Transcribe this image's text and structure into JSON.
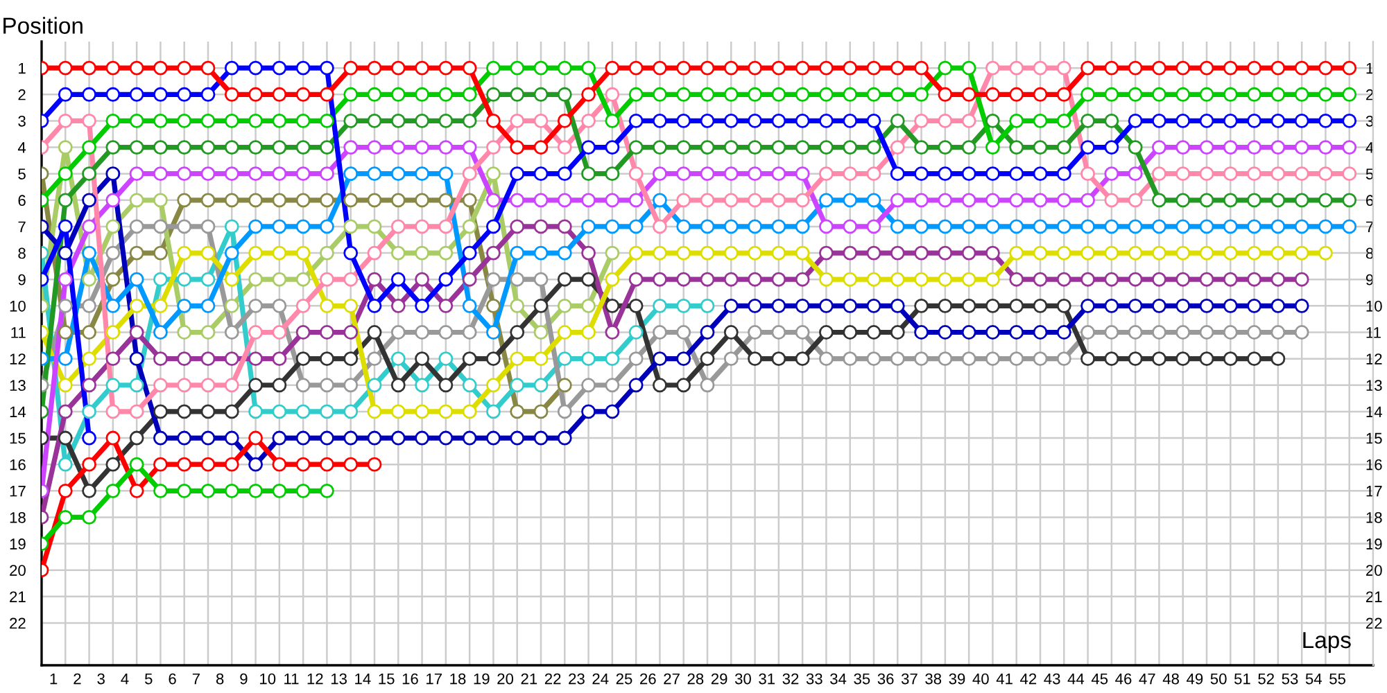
{
  "chart_data": {
    "type": "line",
    "xlabel": "Laps",
    "ylabel": "Position",
    "marker": "circle",
    "grid": true,
    "x": [
      0,
      1,
      2,
      3,
      4,
      5,
      6,
      7,
      8,
      9,
      10,
      11,
      12,
      13,
      14,
      15,
      16,
      17,
      18,
      19,
      20,
      21,
      22,
      23,
      24,
      25,
      26,
      27,
      28,
      29,
      30,
      31,
      32,
      33,
      34,
      35,
      36,
      37,
      38,
      39,
      40,
      41,
      42,
      43,
      44,
      45,
      46,
      47,
      48,
      49,
      50,
      51,
      52,
      53,
      54,
      55
    ],
    "xlim": [
      0,
      56
    ],
    "xticks": [
      {
        "value": 0.5,
        "label": "1"
      },
      {
        "value": 1.5,
        "label": "2"
      },
      {
        "value": 2.5,
        "label": "3"
      },
      {
        "value": 3.5,
        "label": "4"
      },
      {
        "value": 4.5,
        "label": "5"
      },
      {
        "value": 5.5,
        "label": "6"
      },
      {
        "value": 6.5,
        "label": "7"
      },
      {
        "value": 7.5,
        "label": "8"
      },
      {
        "value": 8.5,
        "label": "9"
      },
      {
        "value": 9.5,
        "label": "10"
      },
      {
        "value": 10.5,
        "label": "11"
      },
      {
        "value": 11.5,
        "label": "12"
      },
      {
        "value": 12.5,
        "label": "13"
      },
      {
        "value": 13.5,
        "label": "14"
      },
      {
        "value": 14.5,
        "label": "15"
      },
      {
        "value": 15.5,
        "label": "16"
      },
      {
        "value": 16.5,
        "label": "17"
      },
      {
        "value": 17.5,
        "label": "18"
      },
      {
        "value": 18.5,
        "label": "19"
      },
      {
        "value": 19.5,
        "label": "20"
      },
      {
        "value": 20.5,
        "label": "21"
      },
      {
        "value": 21.5,
        "label": "22"
      },
      {
        "value": 22.5,
        "label": "23"
      },
      {
        "value": 23.5,
        "label": "24"
      },
      {
        "value": 24.5,
        "label": "25"
      },
      {
        "value": 25.5,
        "label": "26"
      },
      {
        "value": 26.5,
        "label": "27"
      },
      {
        "value": 27.5,
        "label": "28"
      },
      {
        "value": 28.5,
        "label": "29"
      },
      {
        "value": 29.5,
        "label": "30"
      },
      {
        "value": 30.5,
        "label": "31"
      },
      {
        "value": 31.5,
        "label": "32"
      },
      {
        "value": 32.5,
        "label": "33"
      },
      {
        "value": 33.5,
        "label": "34"
      },
      {
        "value": 34.5,
        "label": "35"
      },
      {
        "value": 35.5,
        "label": "36"
      },
      {
        "value": 36.5,
        "label": "37"
      },
      {
        "value": 37.5,
        "label": "38"
      },
      {
        "value": 38.5,
        "label": "39"
      },
      {
        "value": 39.5,
        "label": "40"
      },
      {
        "value": 40.5,
        "label": "41"
      },
      {
        "value": 41.5,
        "label": "42"
      },
      {
        "value": 42.5,
        "label": "43"
      },
      {
        "value": 43.5,
        "label": "44"
      },
      {
        "value": 44.5,
        "label": "45"
      },
      {
        "value": 45.5,
        "label": "46"
      },
      {
        "value": 46.5,
        "label": "47"
      },
      {
        "value": 47.5,
        "label": "48"
      },
      {
        "value": 48.5,
        "label": "49"
      },
      {
        "value": 49.5,
        "label": "50"
      },
      {
        "value": 50.5,
        "label": "51"
      },
      {
        "value": 51.5,
        "label": "52"
      },
      {
        "value": 52.5,
        "label": "53"
      },
      {
        "value": 53.5,
        "label": "54"
      },
      {
        "value": 54.5,
        "label": "55"
      },
      {
        "value": 1,
        "label": null
      },
      {
        "value": 2,
        "label": null
      },
      {
        "value": 3,
        "label": null
      },
      {
        "value": 4,
        "label": null
      },
      {
        "value": 5,
        "label": null
      },
      {
        "value": 6,
        "label": null
      },
      {
        "value": 7,
        "label": null
      },
      {
        "value": 8,
        "label": null
      },
      {
        "value": 9,
        "label": null
      },
      {
        "value": 10,
        "label": null
      },
      {
        "value": 11,
        "label": null
      },
      {
        "value": 12,
        "label": null
      },
      {
        "value": 13,
        "label": null
      },
      {
        "value": 14,
        "label": null
      },
      {
        "value": 15,
        "label": null
      },
      {
        "value": 16,
        "label": null
      },
      {
        "value": 17,
        "label": null
      },
      {
        "value": 18,
        "label": null
      },
      {
        "value": 19,
        "label": null
      },
      {
        "value": 20,
        "label": null
      },
      {
        "value": 21,
        "label": null
      },
      {
        "value": 22,
        "label": null
      },
      {
        "value": 23,
        "label": null
      },
      {
        "value": 24,
        "label": null
      },
      {
        "value": 25,
        "label": null
      },
      {
        "value": 26,
        "label": null
      },
      {
        "value": 27,
        "label": null
      },
      {
        "value": 28,
        "label": null
      },
      {
        "value": 29,
        "label": null
      },
      {
        "value": 30,
        "label": null
      },
      {
        "value": 31,
        "label": null
      },
      {
        "value": 32,
        "label": null
      },
      {
        "value": 33,
        "label": null
      },
      {
        "value": 34,
        "label": null
      },
      {
        "value": 35,
        "label": null
      },
      {
        "value": 36,
        "label": null
      },
      {
        "value": 37,
        "label": null
      },
      {
        "value": 38,
        "label": null
      },
      {
        "value": 39,
        "label": null
      },
      {
        "value": 40,
        "label": null
      },
      {
        "value": 41,
        "label": null
      },
      {
        "value": 42,
        "label": null
      },
      {
        "value": 43,
        "label": null
      },
      {
        "value": 44,
        "label": null
      },
      {
        "value": 45,
        "label": null
      },
      {
        "value": 46,
        "label": null
      },
      {
        "value": 47,
        "label": null
      },
      {
        "value": 48,
        "label": null
      },
      {
        "value": 49,
        "label": null
      },
      {
        "value": 50,
        "label": null
      },
      {
        "value": 51,
        "label": null
      },
      {
        "value": 52,
        "label": null
      },
      {
        "value": 53,
        "label": null
      },
      {
        "value": 54,
        "label": null
      },
      {
        "value": 55,
        "label": null
      },
      {
        "value": 56,
        "label": null
      }
    ],
    "ylim": [
      23.6,
      0
    ],
    "yticks": [
      1,
      2,
      3,
      4,
      5,
      6,
      7,
      8,
      9,
      10,
      11,
      12,
      13,
      14,
      15,
      16,
      17,
      18,
      19,
      20,
      21,
      22
    ],
    "y2lim": [
      23.6,
      0
    ],
    "y2ticks": [
      1,
      2,
      3,
      4,
      5,
      6,
      7,
      8,
      9,
      10,
      11,
      12,
      13,
      14,
      15,
      16,
      17,
      18,
      19,
      20,
      21,
      22
    ],
    "series": [
      {
        "color": "#888844",
        "values": [
          5,
          11,
          11,
          9,
          8,
          8,
          6,
          6,
          6,
          6,
          6,
          6,
          6,
          6,
          6,
          6,
          6,
          6,
          6,
          10,
          14,
          14,
          13,
          null,
          null,
          null,
          null,
          null,
          null,
          null,
          null,
          null,
          null,
          null,
          null,
          null,
          null,
          null,
          null,
          null,
          null,
          null,
          null,
          null,
          null,
          null,
          null,
          null,
          null,
          null,
          null,
          null,
          null,
          null,
          null,
          null
        ]
      },
      {
        "color": "#aacc66",
        "values": [
          10,
          4,
          9,
          7,
          6,
          6,
          11,
          11,
          10,
          9,
          9,
          9,
          8,
          7,
          7,
          8,
          8,
          8,
          7,
          5,
          10,
          11,
          10,
          10,
          8,
          null,
          null,
          null,
          null,
          null,
          null,
          null,
          null,
          null,
          null,
          null,
          null,
          null,
          null,
          null,
          null,
          null,
          null,
          null,
          null,
          null,
          null,
          null,
          null,
          null,
          null,
          null,
          null,
          null,
          null,
          null
        ]
      },
      {
        "color": "#33cccc",
        "values": [
          8,
          16,
          14,
          13,
          13,
          9,
          9,
          9,
          7,
          14,
          14,
          14,
          14,
          14,
          13,
          12,
          13,
          12,
          13,
          14,
          13,
          13,
          12,
          12,
          12,
          11,
          10,
          10,
          10,
          null,
          null,
          null,
          null,
          null,
          null,
          null,
          null,
          null,
          null,
          null,
          null,
          null,
          null,
          null,
          null,
          null,
          null,
          null,
          null,
          null,
          null,
          null,
          null,
          null,
          null,
          null
        ]
      },
      {
        "color": "#999999",
        "values": [
          13,
          10,
          10,
          8,
          7,
          7,
          7,
          7,
          11,
          10,
          10,
          13,
          13,
          13,
          12,
          11,
          11,
          11,
          11,
          9,
          9,
          9,
          14,
          13,
          13,
          12,
          11,
          11,
          13,
          12,
          11,
          11,
          11,
          12,
          12,
          12,
          12,
          12,
          12,
          12,
          12,
          12,
          12,
          12,
          11,
          11,
          11,
          11,
          11,
          11,
          11,
          11,
          11,
          11,
          null,
          null
        ]
      },
      {
        "color": "#333333",
        "values": [
          15,
          15,
          17,
          16,
          15,
          14,
          14,
          14,
          14,
          13,
          13,
          12,
          12,
          12,
          11,
          13,
          12,
          13,
          12,
          12,
          11,
          10,
          9,
          9,
          10,
          10,
          13,
          13,
          12,
          11,
          12,
          12,
          12,
          11,
          11,
          11,
          11,
          10,
          10,
          10,
          10,
          10,
          10,
          10,
          12,
          12,
          12,
          12,
          12,
          12,
          12,
          12,
          12,
          null,
          null,
          null
        ]
      },
      {
        "color": "#0000bb",
        "values": [
          7,
          8,
          6,
          5,
          12,
          15,
          15,
          15,
          15,
          16,
          15,
          15,
          15,
          15,
          15,
          15,
          15,
          15,
          15,
          15,
          15,
          15,
          15,
          14,
          14,
          13,
          12,
          12,
          11,
          10,
          10,
          10,
          10,
          10,
          10,
          10,
          10,
          11,
          11,
          11,
          11,
          11,
          11,
          11,
          10,
          10,
          10,
          10,
          10,
          10,
          10,
          10,
          10,
          10,
          null,
          null
        ]
      },
      {
        "color": "#993399",
        "values": [
          18,
          14,
          13,
          12,
          11,
          12,
          12,
          12,
          12,
          12,
          12,
          11,
          11,
          11,
          9,
          10,
          9,
          10,
          9,
          8,
          7,
          7,
          7,
          8,
          11,
          9,
          9,
          9,
          9,
          9,
          9,
          9,
          9,
          8,
          8,
          8,
          8,
          8,
          8,
          8,
          8,
          9,
          9,
          9,
          9,
          9,
          9,
          9,
          9,
          9,
          9,
          9,
          9,
          9,
          null,
          null
        ]
      },
      {
        "color": "#dddd00",
        "values": [
          11,
          13,
          12,
          11,
          10,
          10,
          8,
          8,
          9,
          8,
          8,
          8,
          10,
          10,
          14,
          14,
          14,
          14,
          14,
          13,
          12,
          12,
          11,
          11,
          9,
          8,
          8,
          8,
          8,
          8,
          8,
          8,
          8,
          9,
          9,
          9,
          9,
          9,
          9,
          9,
          9,
          8,
          8,
          8,
          8,
          8,
          8,
          8,
          8,
          8,
          8,
          8,
          8,
          8,
          8,
          null
        ]
      },
      {
        "color": "#0099ff",
        "values": [
          12,
          12,
          8,
          10,
          9,
          11,
          10,
          10,
          8,
          7,
          7,
          7,
          7,
          5,
          5,
          5,
          5,
          5,
          10,
          11,
          8,
          8,
          8,
          7,
          7,
          7,
          6,
          7,
          7,
          7,
          7,
          7,
          7,
          6,
          6,
          6,
          7,
          7,
          7,
          7,
          7,
          7,
          7,
          7,
          7,
          7,
          7,
          7,
          7,
          7,
          7,
          7,
          7,
          7,
          7,
          7
        ]
      },
      {
        "color": "#cc44ff",
        "values": [
          17,
          9,
          7,
          6,
          5,
          5,
          5,
          5,
          5,
          5,
          5,
          5,
          5,
          4,
          4,
          4,
          4,
          4,
          4,
          6,
          6,
          6,
          6,
          6,
          6,
          6,
          5,
          5,
          5,
          5,
          5,
          5,
          5,
          7,
          7,
          7,
          6,
          6,
          6,
          6,
          6,
          6,
          6,
          6,
          6,
          5,
          5,
          4,
          4,
          4,
          4,
          4,
          4,
          4,
          4,
          4
        ]
      },
      {
        "color": "#ff88aa",
        "values": [
          4,
          3,
          3,
          14,
          14,
          13,
          13,
          13,
          13,
          11,
          11,
          10,
          9,
          9,
          8,
          7,
          7,
          7,
          5,
          4,
          3,
          3,
          4,
          3,
          2,
          5,
          7,
          6,
          6,
          6,
          6,
          6,
          6,
          5,
          5,
          5,
          4,
          3,
          3,
          3,
          1,
          1,
          1,
          1,
          5,
          6,
          6,
          5,
          5,
          5,
          5,
          5,
          5,
          5,
          5,
          5
        ]
      },
      {
        "color": "#229922",
        "values": [
          14,
          6,
          5,
          4,
          4,
          4,
          4,
          4,
          4,
          4,
          4,
          4,
          4,
          3,
          3,
          3,
          3,
          3,
          3,
          2,
          2,
          2,
          2,
          5,
          5,
          4,
          4,
          4,
          4,
          4,
          4,
          4,
          4,
          4,
          4,
          4,
          3,
          4,
          4,
          4,
          3,
          4,
          4,
          4,
          3,
          3,
          4,
          6,
          6,
          6,
          6,
          6,
          6,
          6,
          6,
          6
        ]
      },
      {
        "color": "#00cc00",
        "values": [
          6,
          5,
          4,
          3,
          3,
          3,
          3,
          3,
          3,
          3,
          3,
          3,
          3,
          2,
          2,
          2,
          2,
          2,
          2,
          1,
          1,
          1,
          1,
          1,
          3,
          2,
          2,
          2,
          2,
          2,
          2,
          2,
          2,
          2,
          2,
          2,
          2,
          2,
          1,
          1,
          4,
          3,
          3,
          3,
          2,
          2,
          2,
          2,
          2,
          2,
          2,
          2,
          2,
          2,
          2,
          2
        ]
      },
      {
        "color": "#0000ff",
        "values": [
          3,
          2,
          2,
          2,
          2,
          2,
          2,
          2,
          1,
          1,
          1,
          1,
          1,
          8,
          10,
          9,
          10,
          9,
          8,
          7,
          5,
          5,
          5,
          4,
          4,
          3,
          3,
          3,
          3,
          3,
          3,
          3,
          3,
          3,
          3,
          3,
          5,
          5,
          5,
          5,
          5,
          5,
          5,
          5,
          4,
          4,
          3,
          3,
          3,
          3,
          3,
          3,
          3,
          3,
          3,
          3
        ]
      },
      {
        "color": "#ff0000",
        "values": [
          1,
          1,
          1,
          1,
          1,
          1,
          1,
          1,
          2,
          2,
          2,
          2,
          2,
          1,
          1,
          1,
          1,
          1,
          1,
          3,
          4,
          4,
          3,
          2,
          1,
          1,
          1,
          1,
          1,
          1,
          1,
          1,
          1,
          1,
          1,
          1,
          1,
          1,
          2,
          2,
          2,
          2,
          2,
          2,
          1,
          1,
          1,
          1,
          1,
          1,
          1,
          1,
          1,
          1,
          1,
          1
        ]
      },
      {
        "color": "#0000ff",
        "values": [
          9,
          7,
          15,
          null,
          null,
          null,
          null,
          null,
          null,
          null,
          null,
          null,
          null,
          null,
          null,
          null,
          null,
          null,
          null,
          null,
          null,
          null,
          null,
          null,
          null,
          null,
          null,
          null,
          null,
          null,
          null,
          null,
          null,
          null,
          null,
          null,
          null,
          null,
          null,
          null,
          null,
          null,
          null,
          null,
          null,
          null,
          null,
          null,
          null,
          null,
          null,
          null,
          null,
          null,
          null,
          null
        ]
      },
      {
        "color": "#ff0000",
        "values": [
          20,
          17,
          16,
          15,
          17,
          16,
          16,
          16,
          16,
          15,
          16,
          16,
          16,
          16,
          16,
          null,
          null,
          null,
          null,
          null,
          null,
          null,
          null,
          null,
          null,
          null,
          null,
          null,
          null,
          null,
          null,
          null,
          null,
          null,
          null,
          null,
          null,
          null,
          null,
          null,
          null,
          null,
          null,
          null,
          null,
          null,
          null,
          null,
          null,
          null,
          null,
          null,
          null,
          null,
          null,
          null
        ]
      },
      {
        "color": "#00cc00",
        "values": [
          19,
          18,
          18,
          17,
          16,
          17,
          17,
          17,
          17,
          17,
          17,
          17,
          17,
          null,
          null,
          null,
          null,
          null,
          null,
          null,
          null,
          null,
          null,
          null,
          null,
          null,
          null,
          null,
          null,
          null,
          null,
          null,
          null,
          null,
          null,
          null,
          null,
          null,
          null,
          null,
          null,
          null,
          null,
          null,
          null,
          null,
          null,
          null,
          null,
          null,
          null,
          null,
          null,
          null,
          null,
          null
        ]
      }
    ]
  }
}
